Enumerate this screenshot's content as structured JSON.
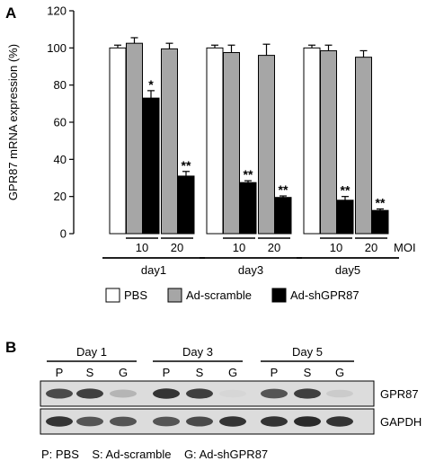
{
  "panel_a_label": "A",
  "panel_b_label": "B",
  "chart_data": {
    "type": "bar",
    "ylabel": "GPR87 mRNA expression (%)",
    "ylim": [
      0,
      120
    ],
    "yticks": [
      0,
      20,
      40,
      60,
      80,
      100,
      120
    ],
    "legend_position": "bottom",
    "groups": [
      {
        "label": "day1",
        "bars": [
          {
            "series": "PBS",
            "moi": "",
            "value": 100,
            "error": 1.5,
            "sig": ""
          },
          {
            "series": "Ad-scramble",
            "moi": "",
            "value": 102.5,
            "error": 3,
            "sig": ""
          },
          {
            "series": "Ad-shGPR87",
            "moi": "10",
            "value": 73,
            "error": 4,
            "sig": "*"
          },
          {
            "series": "Ad-scramble",
            "moi": "",
            "value": 99.5,
            "error": 3,
            "sig": ""
          },
          {
            "series": "Ad-shGPR87",
            "moi": "20",
            "value": 31,
            "error": 2.5,
            "sig": "**"
          }
        ]
      },
      {
        "label": "day3",
        "bars": [
          {
            "series": "PBS",
            "moi": "",
            "value": 100,
            "error": 1.5,
            "sig": ""
          },
          {
            "series": "Ad-scramble",
            "moi": "",
            "value": 97.5,
            "error": 4,
            "sig": ""
          },
          {
            "series": "Ad-shGPR87",
            "moi": "10",
            "value": 27.5,
            "error": 1,
            "sig": "**"
          },
          {
            "series": "Ad-scramble",
            "moi": "",
            "value": 96,
            "error": 6,
            "sig": ""
          },
          {
            "series": "Ad-shGPR87",
            "moi": "20",
            "value": 19.5,
            "error": 0.8,
            "sig": "**"
          }
        ]
      },
      {
        "label": "day5",
        "bars": [
          {
            "series": "PBS",
            "moi": "",
            "value": 100,
            "error": 1.5,
            "sig": ""
          },
          {
            "series": "Ad-scramble",
            "moi": "",
            "value": 98.5,
            "error": 3,
            "sig": ""
          },
          {
            "series": "Ad-shGPR87",
            "moi": "10",
            "value": 18,
            "error": 2,
            "sig": "**"
          },
          {
            "series": "Ad-scramble",
            "moi": "",
            "value": 95,
            "error": 3.5,
            "sig": ""
          },
          {
            "series": "Ad-shGPR87",
            "moi": "20",
            "value": 12.5,
            "error": 0.8,
            "sig": "**"
          }
        ]
      }
    ],
    "moi_label": "MOI",
    "legend": [
      {
        "name": "PBS",
        "color": "#ffffff"
      },
      {
        "name": "Ad-scramble",
        "color": "#a6a6a6"
      },
      {
        "name": "Ad-shGPR87",
        "color": "#000000"
      }
    ]
  },
  "blot": {
    "days": [
      "Day 1",
      "Day 3",
      "Day 5"
    ],
    "lanes": [
      "P",
      "S",
      "G"
    ],
    "rows": [
      {
        "label": "GPR87",
        "intensity": [
          [
            0.75,
            0.8,
            0.25
          ],
          [
            0.85,
            0.8,
            0.1
          ],
          [
            0.7,
            0.8,
            0.15
          ]
        ]
      },
      {
        "label": "GAPDH",
        "intensity": [
          [
            0.85,
            0.7,
            0.7
          ],
          [
            0.7,
            0.75,
            0.85
          ],
          [
            0.85,
            0.9,
            0.85
          ]
        ]
      }
    ],
    "caption": "P: PBS    S: Ad-scramble    G: Ad-shGPR87"
  }
}
